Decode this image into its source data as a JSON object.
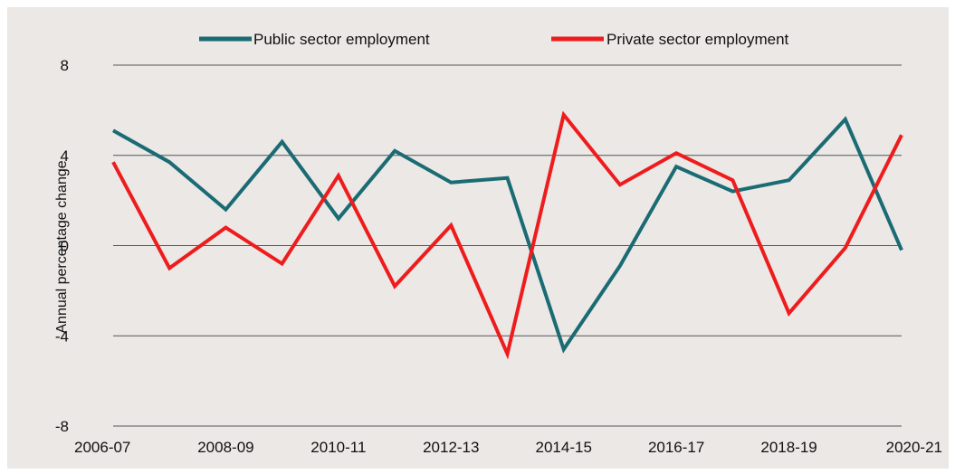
{
  "chart_data": {
    "type": "line",
    "title": "",
    "xlabel": "",
    "ylabel": "Annual percentage change",
    "ylim": [
      -8,
      8
    ],
    "yticks": [
      "8",
      "4",
      "0",
      "-4",
      "-8"
    ],
    "x": [
      "2006-07",
      "2007-08",
      "2008-09",
      "2009-10",
      "2010-11",
      "2011-12",
      "2012-13",
      "2013-14",
      "2014-15",
      "2015-16",
      "2016-17",
      "2017-18",
      "2018-19",
      "2019-20",
      "2020-21"
    ],
    "xtick_labels": [
      "2006-07",
      "",
      "2008-09",
      "",
      "2010-11",
      "",
      "2012-13",
      "",
      "2014-15",
      "",
      "2016-17",
      "",
      "2018-19",
      "",
      "2020-21"
    ],
    "grid": "horizontal",
    "legend_position": "top",
    "series": [
      {
        "name": "Public sector employment",
        "color": "#1a6b73",
        "values": [
          5.1,
          3.7,
          1.6,
          4.6,
          1.2,
          4.2,
          2.8,
          3.0,
          -4.6,
          -0.9,
          3.5,
          2.4,
          2.9,
          5.6,
          -0.2
        ]
      },
      {
        "name": "Private sector employment",
        "color": "#ee1c1c",
        "values": [
          3.7,
          -1.0,
          0.8,
          -0.8,
          3.1,
          -1.8,
          0.9,
          -4.8,
          5.8,
          2.7,
          4.1,
          2.9,
          -3.0,
          -0.1,
          4.9
        ]
      }
    ]
  }
}
